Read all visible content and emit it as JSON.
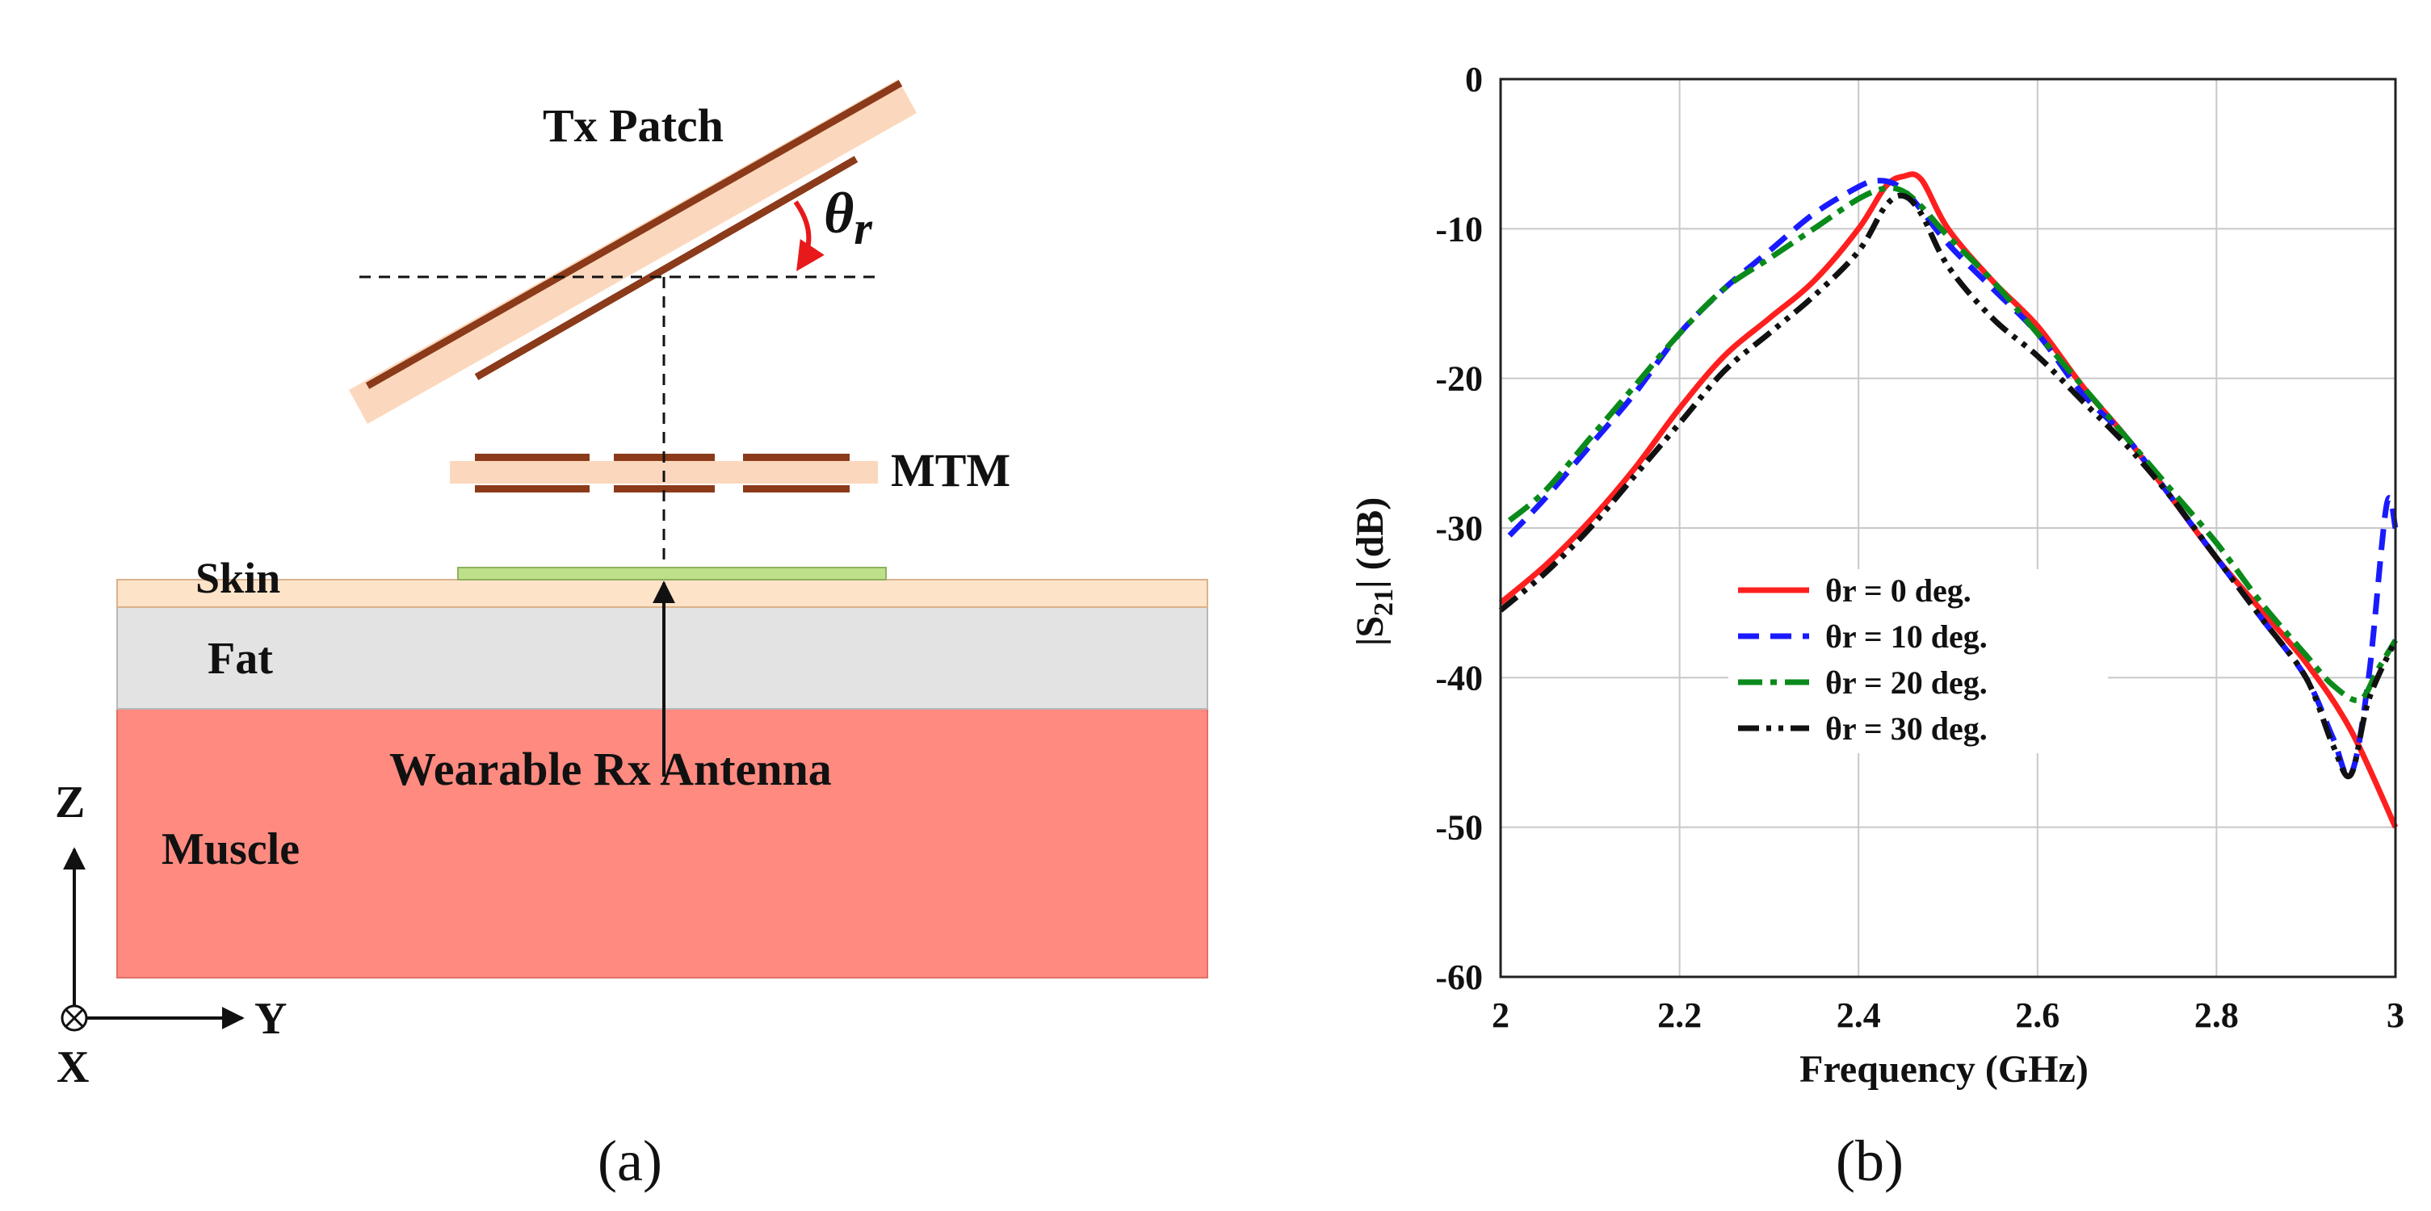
{
  "diagram": {
    "labels": {
      "tx_patch": "Tx Patch",
      "theta_main": "θ",
      "theta_sub": "r",
      "mtm": "MTM",
      "skin": "Skin",
      "fat": "Fat",
      "muscle": "Muscle",
      "rx_antenna": "Wearable Rx Antenna",
      "axis_z": "Z",
      "axis_y": "Y",
      "axis_x": "X"
    },
    "caption": "(a)",
    "colors": {
      "skin": "#fde3c8",
      "fat": "#e3e3e3",
      "muscle": "#ff8a80",
      "substrate": "#fbd8bd",
      "metal": "#8b3a1a",
      "rx_patch": "#bfe08a",
      "arrow_red": "#e8191b"
    }
  },
  "chart": {
    "caption": "(b)",
    "ylabel_main": "|S",
    "ylabel_sub": "21",
    "ylabel_rest": "| (dB)",
    "xlabel": "Frequency (GHz)",
    "xticks": [
      "2",
      "2.2",
      "2.4",
      "2.6",
      "2.8",
      "3"
    ],
    "yticks": [
      "0",
      "-10",
      "-20",
      "-30",
      "-40",
      "-50",
      "-60"
    ]
  },
  "chart_data": {
    "type": "line",
    "xlabel": "Frequency (GHz)",
    "ylabel": "|S21| (dB)",
    "xlim": [
      2,
      3
    ],
    "ylim": [
      -60,
      0
    ],
    "grid": true,
    "legend_position": "center-right",
    "series": [
      {
        "name": "θr = 0 deg.",
        "color": "#ff1f1f",
        "dash": "solid",
        "x": [
          2.0,
          2.05,
          2.1,
          2.15,
          2.2,
          2.25,
          2.3,
          2.35,
          2.4,
          2.43,
          2.45,
          2.47,
          2.5,
          2.55,
          2.6,
          2.65,
          2.7,
          2.75,
          2.8,
          2.85,
          2.9,
          2.95,
          3.0
        ],
        "y": [
          -35,
          -32.5,
          -29.5,
          -26,
          -22,
          -18.5,
          -16,
          -13.5,
          -10,
          -7.2,
          -6.5,
          -6.7,
          -10,
          -13.5,
          -16.5,
          -20.5,
          -24,
          -28,
          -32,
          -35.5,
          -39,
          -43.5,
          -50
        ]
      },
      {
        "name": "θr = 10 deg.",
        "color": "#1a1aff",
        "dash": "dash",
        "x": [
          2.01,
          2.05,
          2.1,
          2.15,
          2.2,
          2.25,
          2.3,
          2.35,
          2.4,
          2.42,
          2.44,
          2.46,
          2.5,
          2.55,
          2.6,
          2.65,
          2.7,
          2.75,
          2.8,
          2.85,
          2.9,
          2.93,
          2.95,
          2.97,
          2.99,
          3.0
        ],
        "y": [
          -30.5,
          -28,
          -24.5,
          -21,
          -17,
          -14,
          -11.5,
          -9,
          -7.2,
          -6.8,
          -7,
          -8,
          -11,
          -14,
          -17,
          -21,
          -24,
          -28,
          -32,
          -36,
          -40,
          -44,
          -46.5,
          -40,
          -28.5,
          -30
        ]
      },
      {
        "name": "θr = 20 deg.",
        "color": "#0a8a1a",
        "dash": "dashdot",
        "x": [
          2.01,
          2.05,
          2.1,
          2.15,
          2.2,
          2.25,
          2.3,
          2.35,
          2.4,
          2.43,
          2.45,
          2.47,
          2.5,
          2.55,
          2.6,
          2.65,
          2.7,
          2.75,
          2.8,
          2.85,
          2.9,
          2.93,
          2.96,
          2.98,
          3.0
        ],
        "y": [
          -29.5,
          -27.5,
          -24,
          -20.5,
          -17,
          -14,
          -12,
          -10,
          -8,
          -7.3,
          -7.5,
          -8.5,
          -10.5,
          -13.5,
          -17,
          -20.5,
          -24,
          -27.5,
          -31,
          -35,
          -38.5,
          -40.5,
          -41.5,
          -39.5,
          -37.5
        ]
      },
      {
        "name": "θr = 30 deg.",
        "color": "#111111",
        "dash": "dashdotdot",
        "x": [
          2.0,
          2.05,
          2.1,
          2.15,
          2.2,
          2.25,
          2.3,
          2.35,
          2.4,
          2.43,
          2.45,
          2.47,
          2.5,
          2.55,
          2.6,
          2.65,
          2.7,
          2.75,
          2.8,
          2.85,
          2.9,
          2.93,
          2.95,
          2.97,
          3.0
        ],
        "y": [
          -35.5,
          -33,
          -30,
          -26.5,
          -23,
          -19.5,
          -17,
          -14.5,
          -11.5,
          -8.5,
          -7.8,
          -9,
          -12.5,
          -16,
          -18.5,
          -21.5,
          -24.5,
          -28,
          -32,
          -36,
          -40,
          -44.5,
          -46.5,
          -41.5,
          -37.5
        ]
      }
    ]
  }
}
